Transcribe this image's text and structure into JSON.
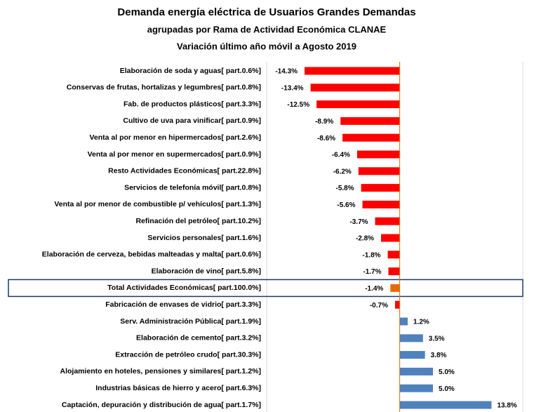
{
  "chart_data": {
    "type": "hbar",
    "title": "Demanda energía eléctrica de Usuarios Grandes Demandas",
    "subtitle": [
      "agrupadas por Rama de Actividad Económica CLANAE",
      "Variación último año móvil a Agosto 2019"
    ],
    "categories": [
      "Elaboración de soda y aguas[ part.0.6%]",
      "Conservas de frutas, hortalizas y legumbres[ part.0.8%]",
      "Fab. de productos plásticos[ part.3.3%]",
      "Cultivo de uva para vinificar[ part.0.9%]",
      "Venta al por menor en hipermercados[ part.2.6%]",
      "Venta al por menor en supermercados[ part.0.9%]",
      "Resto Actividades Económicas[ part.22.8%]",
      "Servicios de telefonía móvil[ part.0.8%]",
      "Venta al por menor de combustible p/ vehículos[ part.1.3%]",
      "Refinación del petróleo[ part.10.2%]",
      "Servicios personales[ part.1.6%]",
      "Elaboración de cerveza, bebidas malteadas y malta[ part.0.6%]",
      "Elaboración de vino[ part.5.8%]",
      "Total Actividades Económicas[ part.100.0%]",
      "Fabricación de envases de vidrio[ part.3.3%]",
      "Serv. Administración Pública[ part.1.9%]",
      "Elaboración de cemento[ part.3.2%]",
      "Extracción de petróleo crudo[ part.30.3%]",
      "Alojamiento en hoteles, pensiones y similares[ part.1.2%]",
      "Industrias básicas de hierro y acero[ part.6.3%]",
      "Captación, depuración y distribución de agua[ part.1.7%]"
    ],
    "values": [
      -14.3,
      -13.4,
      -12.5,
      -8.9,
      -8.6,
      -6.4,
      -6.2,
      -5.8,
      -5.6,
      -3.7,
      -2.8,
      -1.8,
      -1.7,
      -1.4,
      -0.7,
      1.2,
      3.5,
      3.8,
      5.0,
      5.0,
      13.8
    ],
    "value_labels": [
      "-14.3%",
      "-13.4%",
      "-12.5%",
      "-8.9%",
      "-8.6%",
      "-6.4%",
      "-6.2%",
      "-5.8%",
      "-5.6%",
      "-3.7%",
      "-2.8%",
      "-1.8%",
      "-1.7%",
      "-1.4%",
      "-0.7%",
      "1.2%",
      "3.5%",
      "3.8%",
      "5.0%",
      "5.0%",
      "13.8%"
    ],
    "colors": [
      "#ff0000",
      "#ff0000",
      "#ff0000",
      "#ff0000",
      "#ff0000",
      "#ff0000",
      "#ff0000",
      "#ff0000",
      "#ff0000",
      "#ff0000",
      "#ff0000",
      "#ff0000",
      "#ff0000",
      "#e46c0a",
      "#ff0000",
      "#4f81bd",
      "#4f81bd",
      "#4f81bd",
      "#4f81bd",
      "#4f81bd",
      "#4f81bd"
    ],
    "highlight_color": "#1f3864",
    "xlim": [
      -20,
      18.5
    ]
  }
}
